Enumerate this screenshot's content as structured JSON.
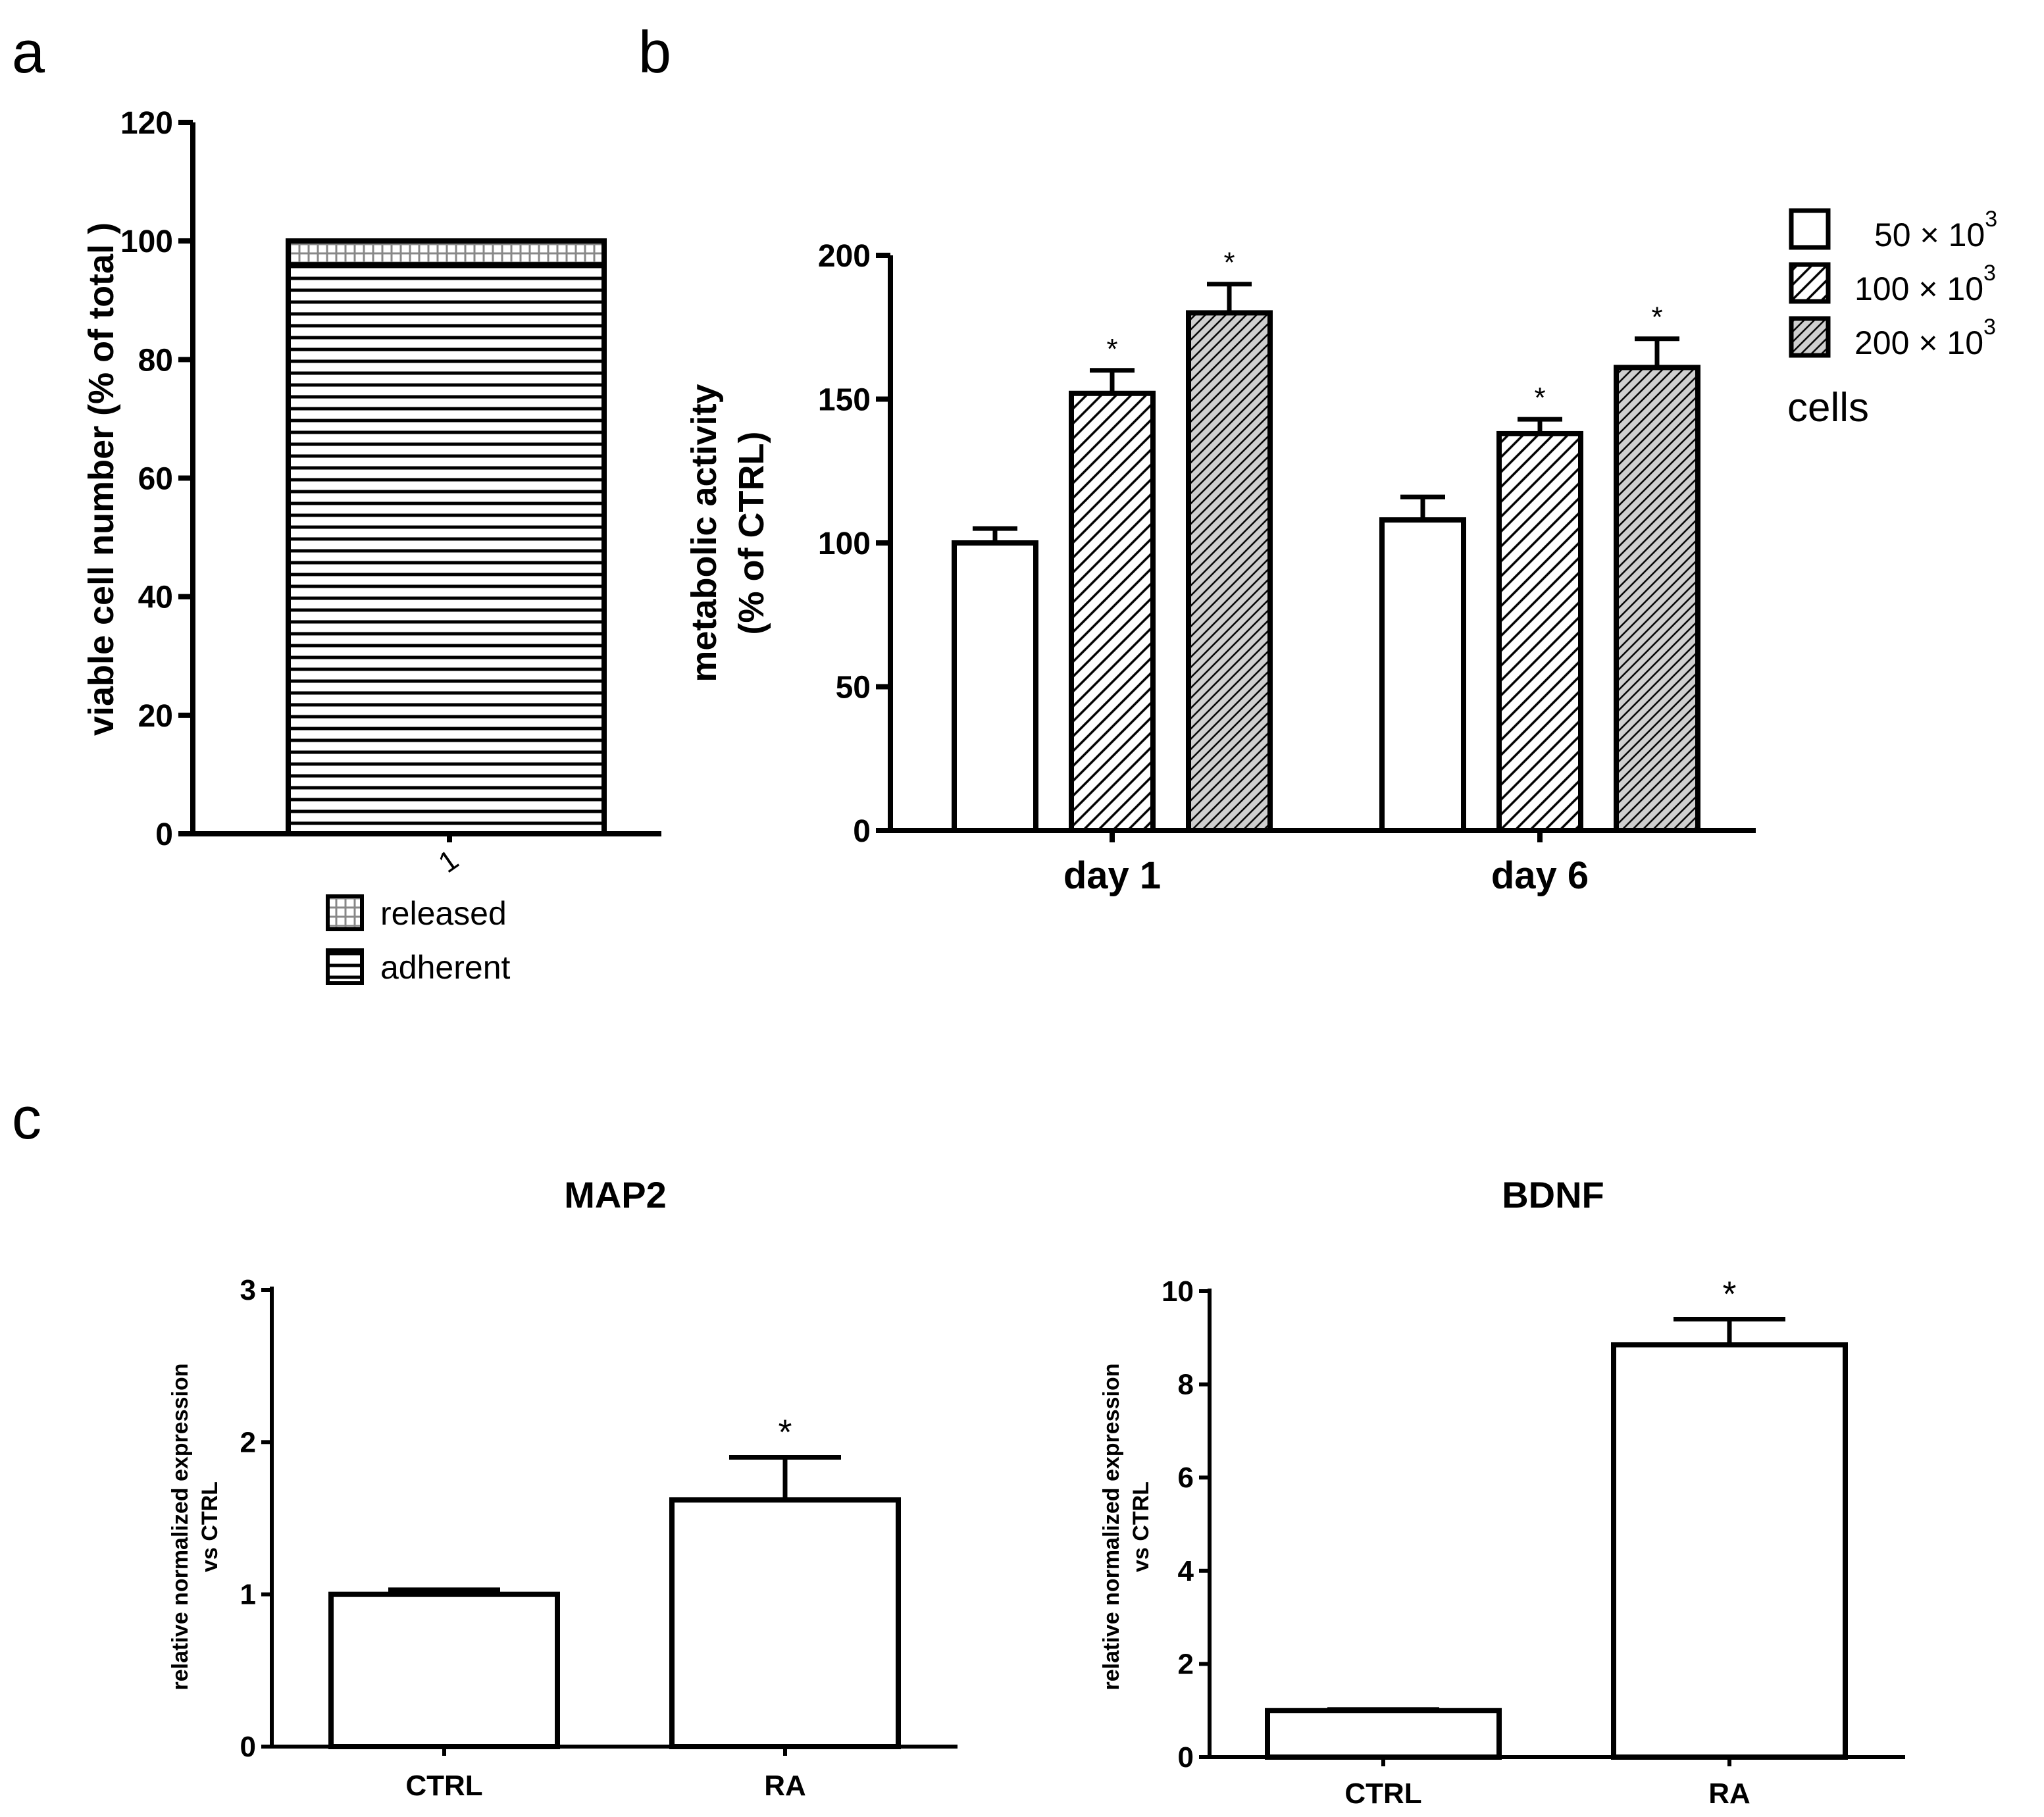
{
  "chart_data": [
    {
      "panel": "a",
      "type": "bar",
      "stacked": true,
      "ylabel": "viable cell number (% of total )",
      "ylim": [
        0,
        120
      ],
      "yticks": [
        0,
        20,
        40,
        60,
        80,
        100,
        120
      ],
      "categories": [
        "1"
      ],
      "series": [
        {
          "name": "adherent",
          "values": [
            96
          ],
          "pattern": "hlines"
        },
        {
          "name": "released",
          "values": [
            4
          ],
          "pattern": "grid"
        }
      ],
      "legend": [
        "released",
        "adherent"
      ],
      "legend_position": "bottom"
    },
    {
      "panel": "b",
      "type": "bar",
      "ylabel": "metabolic activity (% of CTRL)",
      "ylabel_lines": [
        "metabolic activity",
        "(% of CTRL)"
      ],
      "ylim": [
        0,
        200
      ],
      "yticks": [
        0,
        50,
        100,
        150,
        200
      ],
      "categories": [
        "day 1",
        "day 6"
      ],
      "series": [
        {
          "name": "50 × 10",
          "exp": "3",
          "values": [
            100,
            108
          ],
          "errors": [
            5,
            8
          ],
          "significant": [
            false,
            false
          ],
          "pattern": "white"
        },
        {
          "name": "100 × 10",
          "exp": "3",
          "values": [
            152,
            138
          ],
          "errors": [
            8,
            5
          ],
          "significant": [
            true,
            true
          ],
          "pattern": "diag"
        },
        {
          "name": "200 × 10",
          "exp": "3",
          "values": [
            180,
            161
          ],
          "errors": [
            10,
            10
          ],
          "significant": [
            true,
            true
          ],
          "pattern": "diaggray"
        }
      ],
      "legend_title": "cells",
      "legend_position": "top-right"
    },
    {
      "panel": "c",
      "type": "bar",
      "title": "MAP2",
      "ylabel_lines": [
        "relative normalized expression",
        "vs CTRL"
      ],
      "ylim": [
        0,
        3
      ],
      "yticks": [
        0,
        1,
        2,
        3
      ],
      "categories": [
        "CTRL",
        "RA"
      ],
      "values": [
        1.0,
        1.62
      ],
      "errors": [
        0.03,
        0.28
      ],
      "significant": [
        false,
        true
      ]
    },
    {
      "type": "bar",
      "title": "BDNF",
      "ylabel_lines": [
        "relative normalized expression",
        "vs CTRL"
      ],
      "ylim": [
        0,
        10
      ],
      "yticks": [
        0,
        2,
        4,
        6,
        8,
        10
      ],
      "categories": [
        "CTRL",
        "RA"
      ],
      "values": [
        1.0,
        8.85
      ],
      "errors": [
        0.02,
        0.55
      ],
      "significant": [
        false,
        true
      ]
    }
  ],
  "labels": {
    "star": "*"
  }
}
